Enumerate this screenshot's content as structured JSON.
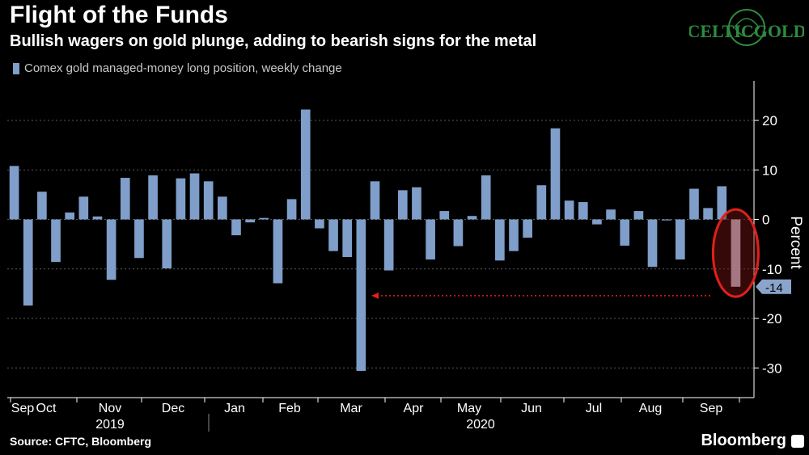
{
  "header": {
    "title": "Flight of the Funds",
    "subtitle": "Bullish wagers on gold plunge, adding to bearish signs for the metal"
  },
  "logo": {
    "text": "CELTICGOLD",
    "color": "#2e8b3e"
  },
  "footer": {
    "source": "Source: CFTC, Bloomberg",
    "brand": "Bloomberg"
  },
  "colors": {
    "bar": "#7f9ec9",
    "highlight": "#d7d7e6",
    "annotation": "#e0201a",
    "axis": "#ffffff",
    "grid": "#5a5a5a"
  },
  "chart_data": {
    "type": "bar",
    "legend": [
      "Comex gold managed-money long position, weekly change"
    ],
    "ylabel": "Percent",
    "ylim": [
      -36,
      28
    ],
    "yticks": [
      20,
      10,
      0,
      -10,
      -20,
      -30
    ],
    "latest_label": "-14",
    "month_labels": [
      "Sep",
      "Oct",
      "Nov",
      "Dec",
      "Jan",
      "Feb",
      "Mar",
      "Apr",
      "May",
      "Jun",
      "Jul",
      "Aug",
      "Sep"
    ],
    "year_labels": [
      "2019",
      "2020"
    ],
    "series": [
      {
        "values": [
          10.8,
          -17.4,
          5.6,
          -8.6,
          1.4,
          4.6,
          0.6,
          -12.2,
          8.4,
          -7.8,
          8.9,
          -9.9,
          8.3,
          9.3,
          7.7,
          4.6,
          -3.2,
          -0.6,
          0.3,
          -12.9,
          4.1,
          22.2,
          -1.8,
          -6.4,
          -7.6,
          -30.6,
          7.7,
          -10.3,
          5.9,
          6.5,
          -8.1,
          1.7,
          -5.4,
          0.7,
          8.9,
          -8.3,
          -6.4,
          -3.7,
          6.9,
          18.4,
          3.8,
          3.5,
          -1.0,
          2.0,
          -5.3,
          1.7,
          -9.6,
          -0.2,
          -8.1,
          6.2,
          2.3,
          6.7,
          -13.6
        ]
      }
    ]
  }
}
